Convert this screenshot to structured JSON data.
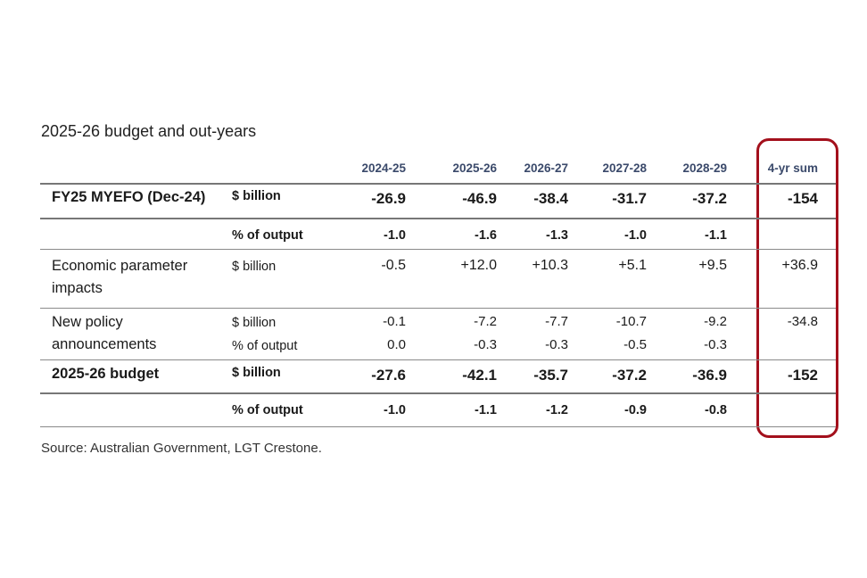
{
  "title": "2025-26 budget and out-years",
  "source": "Source: Australian Government, LGT Crestone.",
  "columns": [
    "2024-25",
    "2025-26",
    "2026-27",
    "2027-28",
    "2028-29",
    "4-yr sum"
  ],
  "colors": {
    "header": "#3b4a6b",
    "highlight_box": "#a3101c"
  },
  "rows": [
    {
      "label": [
        "FY25 MYEFO (Dec-24)"
      ],
      "lines": [
        {
          "unit": "$ billion",
          "values": [
            "-26.9",
            "-46.9",
            "-38.4",
            "-31.7",
            "-37.2",
            "-154"
          ]
        }
      ],
      "style": "big"
    },
    {
      "label": [],
      "lines": [
        {
          "unit": "% of output",
          "values": [
            "-1.0",
            "-1.6",
            "-1.3",
            "-1.0",
            "-1.1",
            ""
          ]
        }
      ],
      "style": "bold"
    },
    {
      "label": [
        "Economic parameter",
        "impacts"
      ],
      "lines": [
        {
          "unit": "$ billion",
          "values": [
            "-0.5",
            "+12.0",
            "+10.3",
            "+5.1",
            "+9.5",
            "+36.9"
          ]
        }
      ],
      "style": "normal"
    },
    {
      "label": [
        "New policy",
        "announcements"
      ],
      "lines": [
        {
          "unit": "$ billion",
          "values": [
            "-0.1",
            "-7.2",
            "-7.7",
            "-10.7",
            "-9.2",
            "-34.8"
          ]
        },
        {
          "unit": "% of output",
          "values": [
            "0.0",
            "-0.3",
            "-0.3",
            "-0.5",
            "-0.3",
            ""
          ]
        }
      ],
      "style": "normal"
    },
    {
      "label": [
        "2025-26 budget"
      ],
      "lines": [
        {
          "unit": "$ billion",
          "values": [
            "-27.6",
            "-42.1",
            "-35.7",
            "-37.2",
            "-36.9",
            "-152"
          ]
        }
      ],
      "style": "big"
    },
    {
      "label": [],
      "lines": [
        {
          "unit": "% of output",
          "values": [
            "-1.0",
            "-1.1",
            "-1.2",
            "-0.9",
            "-0.8",
            ""
          ]
        }
      ],
      "style": "bold"
    }
  ]
}
